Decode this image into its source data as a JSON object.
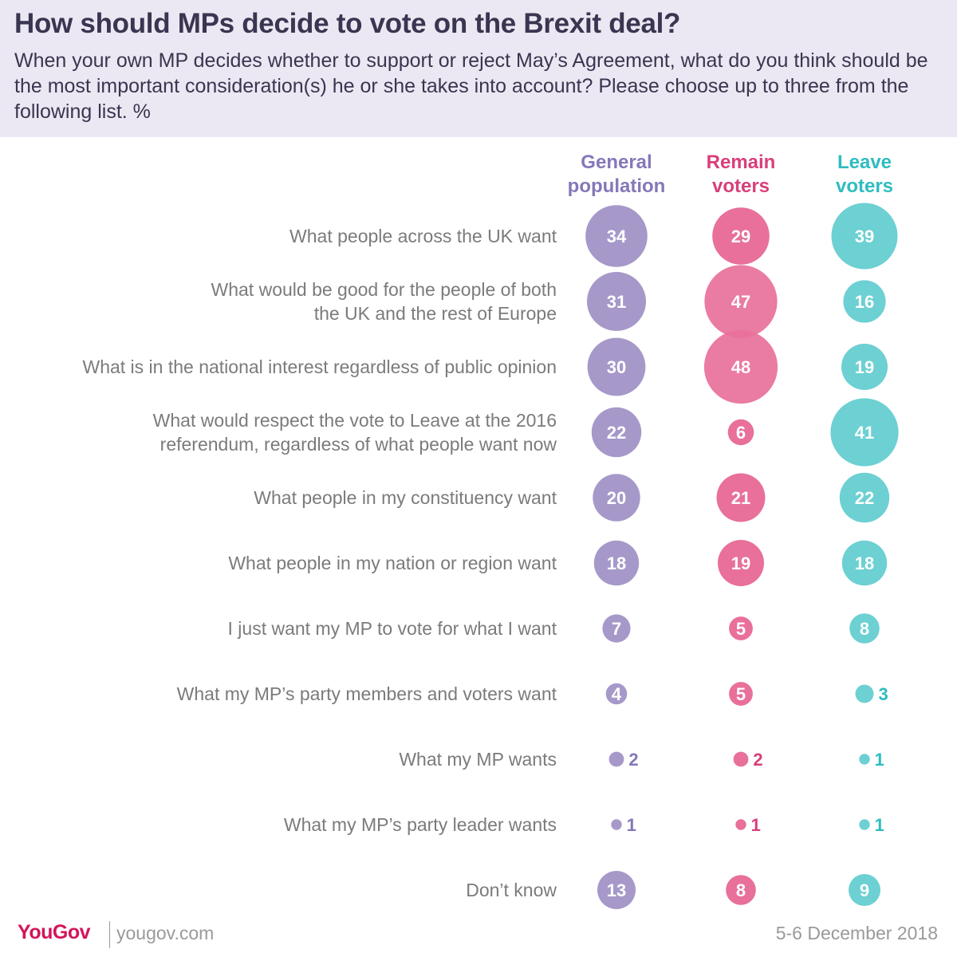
{
  "header": {
    "title": "How should MPs decide to vote on the Brexit deal?",
    "subtitle": "When your own MP decides whether to support or reject May’s Agreement, what do you think should be the most important consideration(s) he or she takes into account? Please choose up to three from the following list. %"
  },
  "chart_data": {
    "type": "bubble-table",
    "title": "How should MPs decide to vote on the Brexit deal?",
    "unit": "%",
    "series": [
      {
        "name_lines": [
          "General",
          "population"
        ],
        "color": "#a699c9",
        "label_color": "#8677b8",
        "values": [
          34,
          31,
          30,
          22,
          20,
          18,
          7,
          4,
          2,
          1,
          13
        ]
      },
      {
        "name_lines": [
          "Remain",
          "voters"
        ],
        "color": "#e8709a",
        "label_color": "#d83f7a",
        "values": [
          29,
          47,
          48,
          6,
          21,
          19,
          5,
          5,
          2,
          1,
          8
        ]
      },
      {
        "name_lines": [
          "Leave",
          "voters"
        ],
        "color": "#6dd0d3",
        "label_color": "#2fbcc1",
        "values": [
          39,
          16,
          19,
          41,
          22,
          18,
          8,
          3,
          1,
          1,
          9
        ]
      }
    ],
    "categories": [
      [
        "What people across the UK want"
      ],
      [
        "What would be good for the people of both",
        "the UK and the rest of Europe"
      ],
      [
        "What is in the national interest regardless of public opinion"
      ],
      [
        "What would respect the vote to Leave at the 2016",
        "referendum, regardless of what people want now"
      ],
      [
        "What people in my constituency want"
      ],
      [
        "What people in my nation or region want"
      ],
      [
        "I just want my MP to vote for what I want"
      ],
      [
        "What my MP’s party members and voters want"
      ],
      [
        "What my MP wants"
      ],
      [
        "What my MP’s party leader wants"
      ],
      [
        "Don’t know"
      ]
    ]
  },
  "footer": {
    "brand_you": "You",
    "brand_gov": "Gov",
    "site": "yougov.com",
    "date": "5-6 December 2018"
  }
}
